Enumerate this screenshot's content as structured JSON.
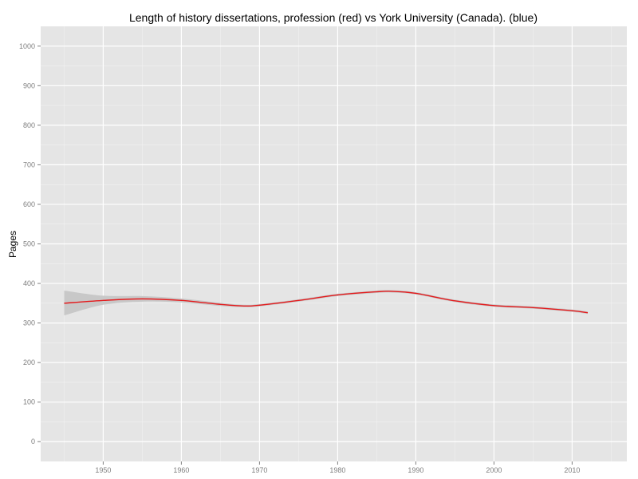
{
  "chart_data": {
    "type": "line",
    "title": "Length of history dissertations, profession (red) vs York University (Canada). (blue)",
    "xlabel": "",
    "ylabel": "Pages",
    "xlim": [
      1942,
      2017
    ],
    "ylim": [
      -50,
      1050
    ],
    "x_ticks": [
      1950,
      1960,
      1970,
      1980,
      1990,
      2000,
      2010
    ],
    "y_ticks": [
      0,
      100,
      200,
      300,
      400,
      500,
      600,
      700,
      800,
      900,
      1000
    ],
    "grid": true,
    "colors": {
      "panel": "#e5e5e5",
      "grid": "#ffffff",
      "line": "#e41a1c",
      "ribbon": "#c8c8c8",
      "tick": "#7f7f7f"
    },
    "series": [
      {
        "x": [
          1945,
          1950,
          1955,
          1960,
          1965,
          1968,
          1970,
          1975,
          1980,
          1985,
          1987,
          1990,
          1995,
          2000,
          2005,
          2010,
          2012
        ],
        "y": [
          350,
          357,
          361,
          357,
          347,
          343,
          345,
          357,
          371,
          379,
          380,
          375,
          356,
          344,
          339,
          331,
          326
        ],
        "lower": [
          319,
          346,
          354,
          352,
          343,
          340,
          342,
          354,
          368,
          376,
          377,
          372,
          353,
          341,
          336,
          328,
          323
        ],
        "upper": [
          382,
          369,
          368,
          362,
          351,
          346,
          348,
          360,
          374,
          382,
          383,
          378,
          359,
          347,
          342,
          334,
          329
        ]
      }
    ]
  }
}
